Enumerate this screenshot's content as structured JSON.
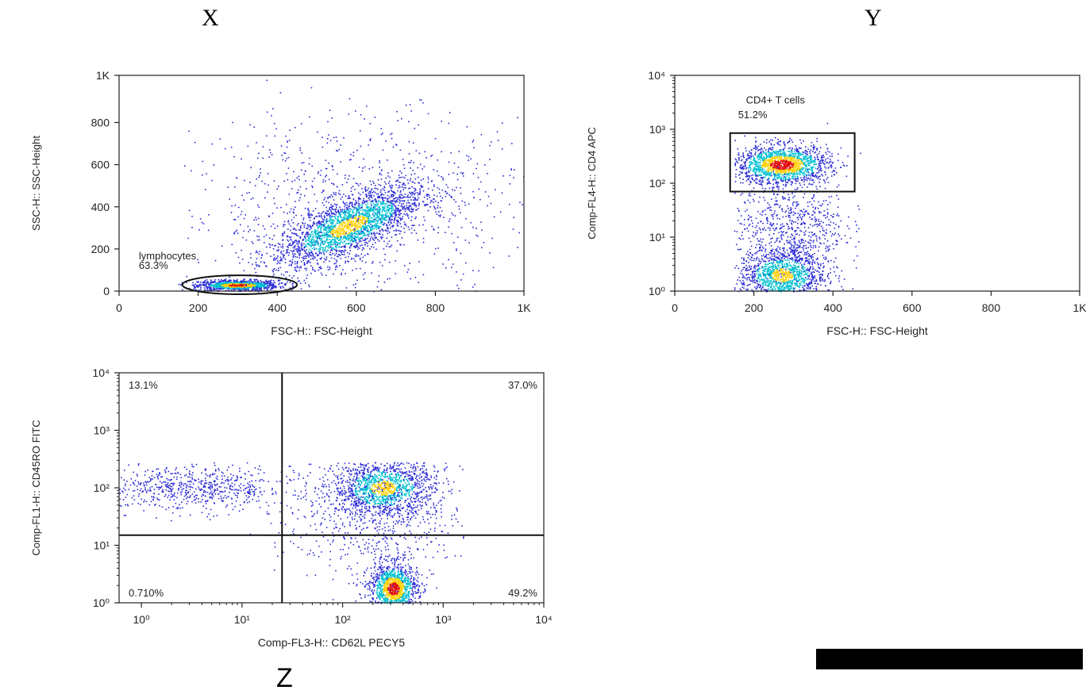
{
  "panel_labels": {
    "x": "X",
    "y": "Y",
    "z": "Z"
  },
  "colors": {
    "density_low": "#2a2ad6",
    "density_mid": "#00c0d0",
    "density_high": "#ffd000",
    "density_peak": "#e01010",
    "axis": "#222222",
    "gate": "#111111"
  },
  "chart_data": [
    {
      "id": "X",
      "type": "scatter",
      "xlabel": "FSC-H:: FSC-Height",
      "ylabel": "SSC-H:: SSC-Height",
      "x_scale": "linear",
      "y_scale": "linear",
      "xlim": [
        0,
        1024
      ],
      "ylim": [
        0,
        1024
      ],
      "x_ticks": [
        0,
        200,
        400,
        600,
        800,
        1024
      ],
      "x_tick_labels": [
        "0",
        "200",
        "400",
        "600",
        "800",
        "1K"
      ],
      "y_ticks": [
        0,
        200,
        400,
        600,
        800,
        1024
      ],
      "y_tick_labels": [
        "0",
        "200",
        "400",
        "600",
        "800",
        "1K"
      ],
      "gate": {
        "shape": "ellipse",
        "name": "lymphocytes",
        "percent": "63.3%",
        "cx": 305,
        "cy": 30,
        "rx": 145,
        "ry": 45
      },
      "populations": [
        {
          "name": "lymphocyte cluster",
          "cx": 300,
          "cy": 30,
          "sx": 50,
          "sy": 12,
          "n": 1100,
          "density": "high"
        },
        {
          "name": "diagonal cluster",
          "cx": 580,
          "cy": 310,
          "sx": 95,
          "sy": 70,
          "n": 2400,
          "density": "mid"
        },
        {
          "name": "background",
          "cx": 600,
          "cy": 400,
          "sx": 230,
          "sy": 230,
          "n": 900,
          "density": "low"
        }
      ]
    },
    {
      "id": "Y",
      "type": "scatter",
      "xlabel": "FSC-H:: FSC-Height",
      "ylabel": "Comp-FL4-H:: CD4 APC",
      "x_scale": "linear",
      "y_scale": "log",
      "xlim": [
        0,
        1024
      ],
      "ylim": [
        1,
        10000
      ],
      "x_ticks": [
        0,
        200,
        400,
        600,
        800,
        1024
      ],
      "x_tick_labels": [
        "0",
        "200",
        "400",
        "600",
        "800",
        "1K"
      ],
      "y_ticks": [
        1,
        10,
        100,
        1000,
        10000
      ],
      "y_tick_labels": [
        "10⁰",
        "10¹",
        "10²",
        "10³",
        "10⁴"
      ],
      "gate": {
        "shape": "rectangle",
        "name": "CD4+ T cells",
        "percent": "51.2%",
        "x0": 140,
        "x1": 455,
        "y0": 70,
        "y1": 850
      },
      "populations": [
        {
          "name": "CD4+ cluster",
          "cx": 270,
          "cy_log": 2.35,
          "sx": 60,
          "sy_log": 0.18,
          "n": 1600,
          "density": "high"
        },
        {
          "name": "CD4- cluster",
          "cx": 270,
          "cy_log": 0.3,
          "sx": 55,
          "sy_log": 0.25,
          "n": 1300,
          "density": "mid"
        },
        {
          "name": "bridge",
          "cx": 290,
          "cy_log": 1.2,
          "sx": 70,
          "sy_log": 0.45,
          "n": 700,
          "density": "low"
        }
      ]
    },
    {
      "id": "Z",
      "type": "scatter",
      "xlabel": "Comp-FL3-H:: CD62L PECY5",
      "ylabel": "Comp-FL1-H:: CD45RO FITC",
      "x_scale": "log",
      "y_scale": "log",
      "xlim": [
        0.6,
        10000
      ],
      "ylim": [
        1,
        10000
      ],
      "x_ticks": [
        1,
        10,
        100,
        1000,
        10000
      ],
      "x_tick_labels": [
        "10⁰",
        "10¹",
        "10²",
        "10³",
        "10⁴"
      ],
      "y_ticks": [
        1,
        10,
        100,
        1000,
        10000
      ],
      "y_tick_labels": [
        "10⁰",
        "10¹",
        "10²",
        "10³",
        "10⁴"
      ],
      "quadrant_split": {
        "x": 25,
        "y": 15
      },
      "quadrant_percents": {
        "upper_left": "13.1%",
        "upper_right": "37.0%",
        "lower_left": "0.710%",
        "lower_right": "49.2%"
      },
      "populations": [
        {
          "name": "CD62L- CD45RO+",
          "cx_log": 0.5,
          "cy_log": 2.0,
          "sx_log": 0.5,
          "sy_log": 0.2,
          "n": 700,
          "density": "low"
        },
        {
          "name": "CD62L+ CD45RO+",
          "cx_log": 2.4,
          "cy_log": 2.0,
          "sx_log": 0.25,
          "sy_log": 0.25,
          "n": 1300,
          "density": "mid"
        },
        {
          "name": "CD62L+ CD45RO-",
          "cx_log": 2.5,
          "cy_log": 0.25,
          "sx_log": 0.12,
          "sy_log": 0.22,
          "n": 1300,
          "density": "high"
        },
        {
          "name": "CD62L+ spread",
          "cx_log": 2.3,
          "cy_log": 1.6,
          "sx_log": 0.45,
          "sy_log": 0.6,
          "n": 700,
          "density": "low"
        }
      ]
    }
  ]
}
